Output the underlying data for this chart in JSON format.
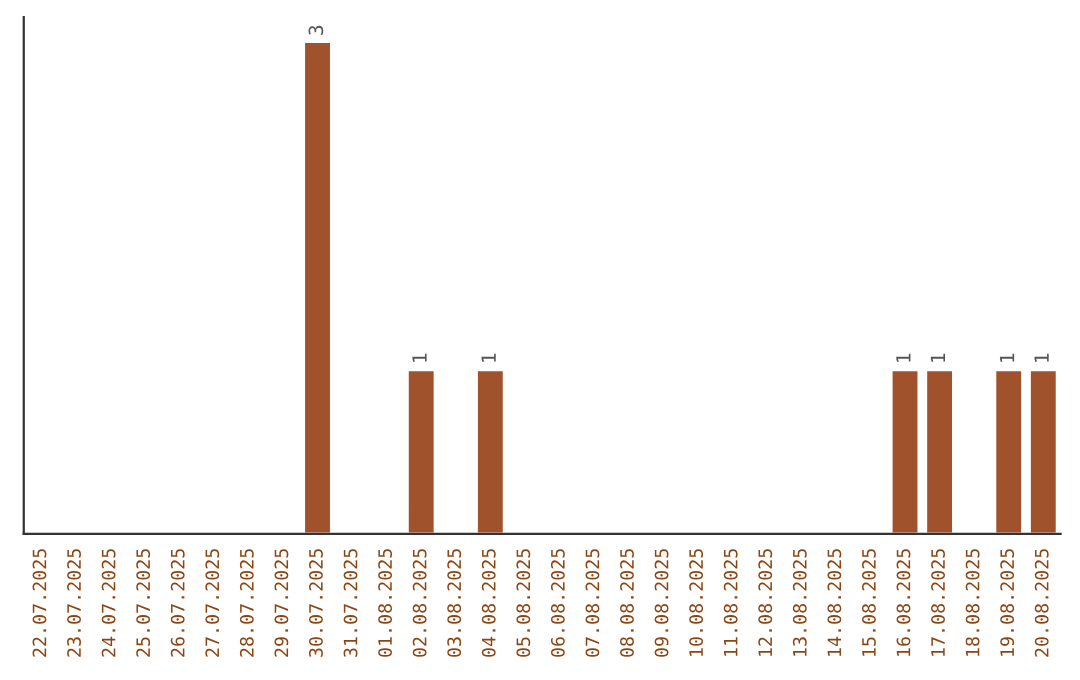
{
  "chart_data": {
    "type": "bar",
    "categories": [
      "22.07.2025",
      "23.07.2025",
      "24.07.2025",
      "25.07.2025",
      "26.07.2025",
      "27.07.2025",
      "28.07.2025",
      "29.07.2025",
      "30.07.2025",
      "31.07.2025",
      "01.08.2025",
      "02.08.2025",
      "03.08.2025",
      "04.08.2025",
      "05.08.2025",
      "06.08.2025",
      "07.08.2025",
      "08.08.2025",
      "09.08.2025",
      "10.08.2025",
      "11.08.2025",
      "12.08.2025",
      "13.08.2025",
      "14.08.2025",
      "15.08.2025",
      "16.08.2025",
      "17.08.2025",
      "18.08.2025",
      "19.08.2025",
      "20.08.2025"
    ],
    "values": [
      0,
      0,
      0,
      0,
      0,
      0,
      0,
      0,
      3,
      0,
      0,
      1,
      0,
      1,
      0,
      0,
      0,
      0,
      0,
      0,
      0,
      0,
      0,
      0,
      0,
      1,
      1,
      0,
      1,
      1
    ],
    "value_labels": [
      null,
      null,
      null,
      null,
      null,
      null,
      null,
      null,
      "3",
      null,
      null,
      "1",
      null,
      "1",
      null,
      null,
      null,
      null,
      null,
      null,
      null,
      null,
      null,
      null,
      null,
      "1",
      "1",
      null,
      "1",
      "1"
    ],
    "color": "#a0522d",
    "tick_labels": "x",
    "grid": false,
    "legend": false
  }
}
